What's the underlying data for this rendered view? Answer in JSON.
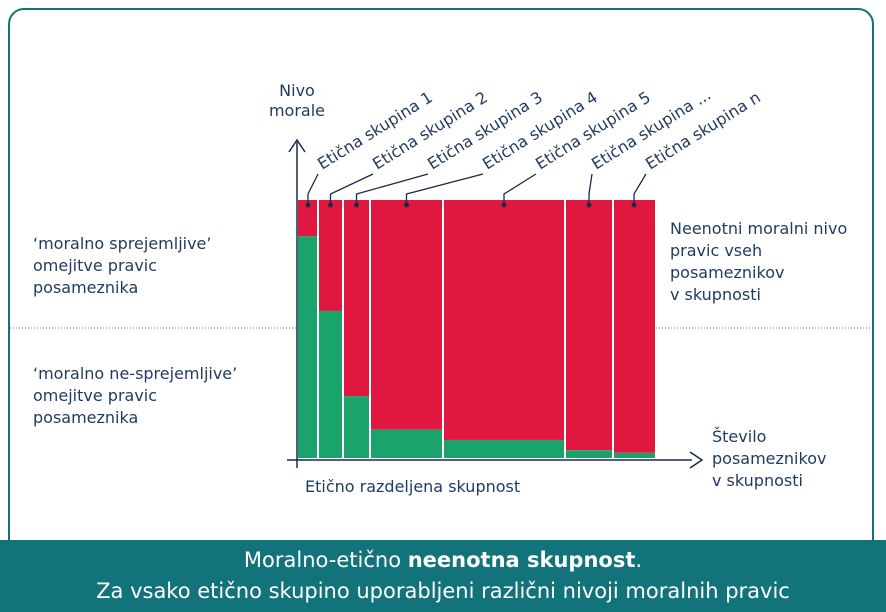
{
  "chart_data": {
    "type": "marimekko",
    "y_label": [
      "Nivo",
      "morale"
    ],
    "x_label": [
      "Število",
      "posameznikov",
      "v skupnosti"
    ],
    "x_caption": "Etično razdeljena skupnost",
    "categories": [
      "Etična skupina 1",
      "Etična skupina 2",
      "Etična skupina 3",
      "Etična skupina 4",
      "Etična skupina 5",
      "Etična skupina ...",
      "Etična skupina n"
    ],
    "widths": [
      20,
      25,
      27,
      73,
      122,
      48,
      42
    ],
    "values": [
      86,
      57,
      24,
      11,
      7,
      3,
      2
    ],
    "ylim": [
      0,
      100
    ],
    "colors": {
      "accepted": "#1aa36b",
      "rest": "#e0173f"
    },
    "left_annotations": [
      [
        "‘moralno sprejemljive’",
        "omejitve pravic",
        "posameznika"
      ],
      [
        "‘moralno ne-sprejemljive’",
        "omejitve pravic",
        "posameznika"
      ]
    ],
    "right_annotation": [
      "Neenotni moralni nivo",
      "pravic vseh",
      "posameznikov",
      "v skupnosti"
    ]
  },
  "banner": {
    "line1_start": "Moralno-etično ",
    "line1_bold": "neenotna skupnost",
    "line1_end": ".",
    "line2": "Za vsako etično skupino uporabljeni različni nivoji moralnih pravic"
  }
}
